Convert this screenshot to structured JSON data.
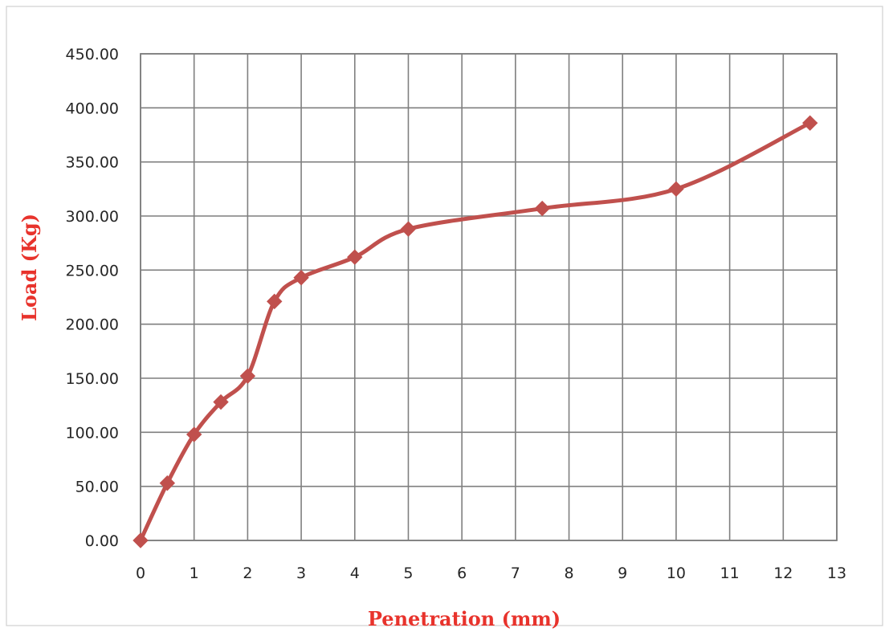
{
  "chart_data": {
    "type": "line",
    "title": "",
    "xlabel": "Penetration (mm)",
    "ylabel": "Load (Kg)",
    "xlim": [
      0,
      13
    ],
    "ylim": [
      0,
      450
    ],
    "x_ticks": [
      "0",
      "1",
      "2",
      "3",
      "4",
      "5",
      "6",
      "7",
      "8",
      "9",
      "10",
      "11",
      "12",
      "13"
    ],
    "y_ticks": [
      "0.00",
      "50.00",
      "100.00",
      "150.00",
      "200.00",
      "250.00",
      "300.00",
      "350.00",
      "400.00",
      "450.00"
    ],
    "grid": true,
    "legend": "none",
    "smooth": true,
    "marker": "diamond",
    "color": "#c0504d",
    "x": [
      0,
      0.5,
      1,
      1.5,
      2,
      2.5,
      3,
      4,
      5,
      7.5,
      10,
      12.5
    ],
    "y": [
      0,
      53,
      98,
      128,
      152,
      221,
      243,
      262,
      288,
      307,
      325,
      386
    ]
  }
}
